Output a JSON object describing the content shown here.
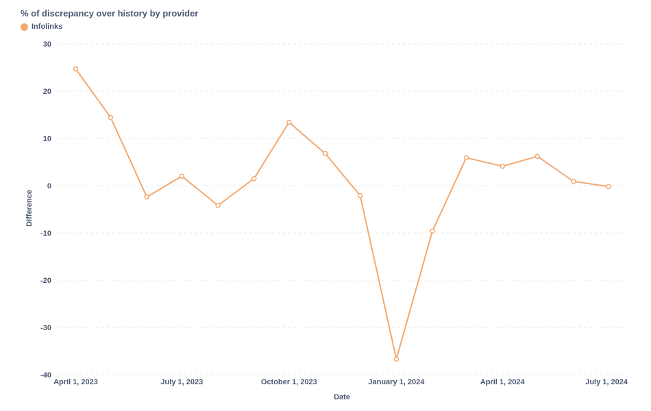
{
  "chart_data": {
    "type": "line",
    "title": "% of discrepancy over history by provider",
    "xlabel": "Date",
    "ylabel": "Difference",
    "ylim": [
      -40,
      30
    ],
    "y_ticks": [
      30,
      20,
      10,
      0,
      -10,
      -20,
      -30,
      -40
    ],
    "x_ticks": [
      "April 1, 2023",
      "July 1, 2023",
      "October 1, 2023",
      "January 1, 2024",
      "April 1, 2024",
      "July 1, 2024"
    ],
    "grid": true,
    "legend_position": "top-left",
    "series": [
      {
        "name": "Infolinks",
        "color": "#f2a86f",
        "points": [
          {
            "x": "2023-04-01",
            "y": 24.7
          },
          {
            "x": "2023-05-01",
            "y": 14.4
          },
          {
            "x": "2023-06-01",
            "y": -2.4
          },
          {
            "x": "2023-07-01",
            "y": 2.0
          },
          {
            "x": "2023-08-01",
            "y": -4.2
          },
          {
            "x": "2023-09-01",
            "y": 1.5
          },
          {
            "x": "2023-10-01",
            "y": 13.4
          },
          {
            "x": "2023-11-01",
            "y": 6.8
          },
          {
            "x": "2023-12-01",
            "y": -2.1
          },
          {
            "x": "2024-01-01",
            "y": -36.7
          },
          {
            "x": "2024-02-01",
            "y": -9.6
          },
          {
            "x": "2024-03-01",
            "y": 5.9
          },
          {
            "x": "2024-04-01",
            "y": 4.1
          },
          {
            "x": "2024-05-01",
            "y": 6.2
          },
          {
            "x": "2024-06-01",
            "y": 0.9
          },
          {
            "x": "2024-07-01",
            "y": -0.2
          }
        ]
      }
    ]
  }
}
